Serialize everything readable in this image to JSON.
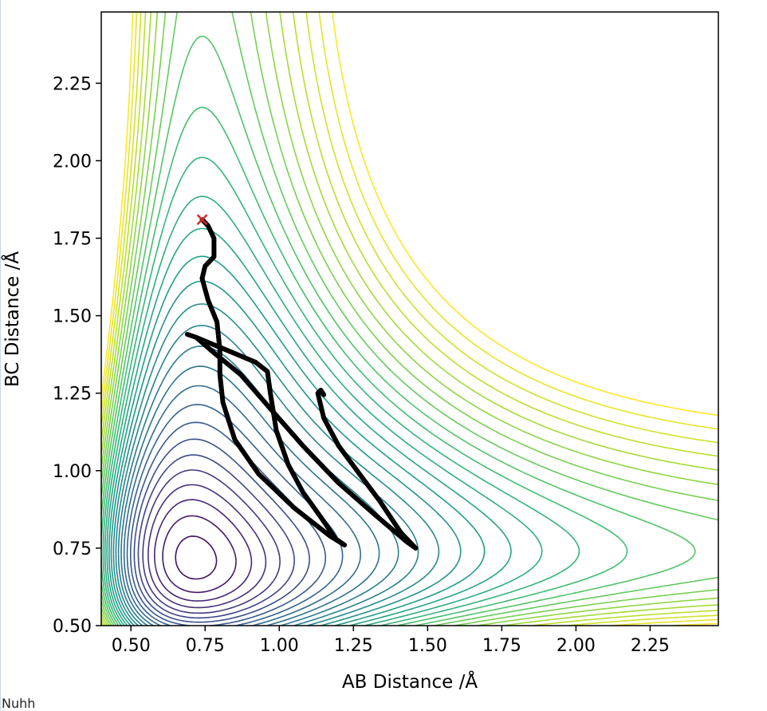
{
  "chart_data": {
    "type": "contour",
    "xlabel": "AB Distance /Å",
    "ylabel": "BC Distance /Å",
    "xlim": [
      0.4,
      2.48
    ],
    "ylim": [
      0.5,
      2.48
    ],
    "xticks": [
      "0.50",
      "0.75",
      "1.00",
      "1.25",
      "1.50",
      "1.75",
      "2.00",
      "2.25"
    ],
    "yticks": [
      "0.50",
      "0.75",
      "1.00",
      "1.25",
      "1.50",
      "1.75",
      "2.00",
      "2.25"
    ],
    "colormap": [
      "#440154",
      "#482878",
      "#3e4989",
      "#31688e",
      "#26828e",
      "#1f9e89",
      "#35b779",
      "#6ece58",
      "#b5de2b",
      "#fde725"
    ],
    "grid": false,
    "contour_levels": 30,
    "trajectory": {
      "color": "#000000",
      "points": [
        [
          1.15,
          1.245
        ],
        [
          1.14,
          1.26
        ],
        [
          1.13,
          1.25
        ],
        [
          1.15,
          1.17
        ],
        [
          1.2,
          1.08
        ],
        [
          1.27,
          0.99
        ],
        [
          1.34,
          0.9
        ],
        [
          1.41,
          0.8
        ],
        [
          1.46,
          0.75
        ],
        [
          1.43,
          0.77
        ],
        [
          1.32,
          0.86
        ],
        [
          1.2,
          0.96
        ],
        [
          1.08,
          1.08
        ],
        [
          0.97,
          1.2
        ],
        [
          0.87,
          1.31
        ],
        [
          0.78,
          1.38
        ],
        [
          0.72,
          1.43
        ],
        [
          0.69,
          1.44
        ],
        [
          0.72,
          1.43
        ],
        [
          0.82,
          1.39
        ],
        [
          0.92,
          1.35
        ],
        [
          0.96,
          1.32
        ],
        [
          0.97,
          1.25
        ],
        [
          0.99,
          1.13
        ],
        [
          1.03,
          1.02
        ],
        [
          1.08,
          0.93
        ],
        [
          1.14,
          0.85
        ],
        [
          1.19,
          0.78
        ],
        [
          1.22,
          0.76
        ],
        [
          1.17,
          0.79
        ],
        [
          1.05,
          0.88
        ],
        [
          0.93,
          0.99
        ],
        [
          0.85,
          1.1
        ],
        [
          0.81,
          1.22
        ],
        [
          0.8,
          1.31
        ],
        [
          0.8,
          1.39
        ],
        [
          0.79,
          1.48
        ],
        [
          0.76,
          1.55
        ],
        [
          0.74,
          1.62
        ],
        [
          0.75,
          1.66
        ],
        [
          0.78,
          1.69
        ],
        [
          0.78,
          1.75
        ],
        [
          0.76,
          1.79
        ],
        [
          0.74,
          1.81
        ]
      ]
    },
    "start_marker": {
      "x": 0.74,
      "y": 1.81,
      "symbol": "×",
      "color": "#d62728"
    }
  },
  "footer_text": "Nuhh"
}
